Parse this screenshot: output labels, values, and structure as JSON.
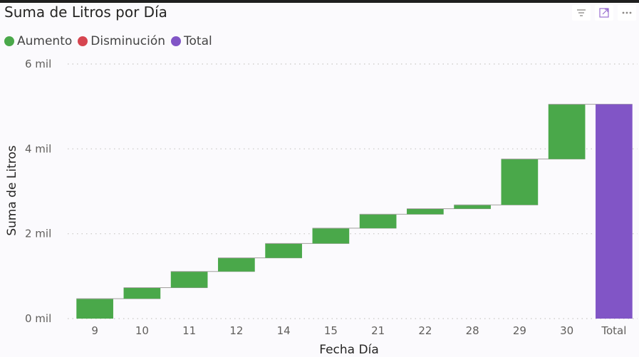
{
  "title": "Suma de Litros por Día",
  "header_icons": [
    "filter-icon",
    "focus-mode-icon",
    "more-options-icon"
  ],
  "legend": [
    {
      "label": "Aumento",
      "color": "#4aa84a"
    },
    {
      "label": "Disminución",
      "color": "#d64550"
    },
    {
      "label": "Total",
      "color": "#8155c6"
    }
  ],
  "chart_data": {
    "type": "waterfall",
    "title": "Suma de Litros por Día",
    "xlabel": "Fecha Día",
    "ylabel": "Suma de Litros",
    "ylim": [
      0,
      6000
    ],
    "y_ticks": [
      {
        "value": 0,
        "label": "0 mil"
      },
      {
        "value": 2000,
        "label": "2 mil"
      },
      {
        "value": 4000,
        "label": "4 mil"
      },
      {
        "value": 6000,
        "label": "6 mil"
      }
    ],
    "grid": true,
    "legend_position": "top-left",
    "categories": [
      "9",
      "10",
      "11",
      "12",
      "14",
      "15",
      "21",
      "22",
      "28",
      "29",
      "30",
      "Total"
    ],
    "deltas": [
      470,
      260,
      380,
      320,
      340,
      360,
      330,
      130,
      90,
      1080,
      1290
    ],
    "total": 5050
  }
}
